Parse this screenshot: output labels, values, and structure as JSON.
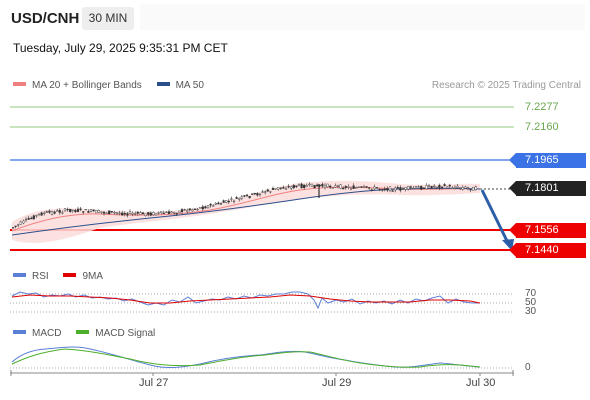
{
  "header": {
    "symbol": "USD/CNH",
    "timeframe": "30 MIN",
    "datetime": "Tuesday, July 29, 2025 9:35:31 PM CET"
  },
  "legend_main": {
    "items": [
      {
        "label": "MA 20 + Bollinger Bands",
        "color": "#f08080"
      },
      {
        "label": "MA 50",
        "color": "#2b4f8c"
      }
    ],
    "credit": "Research © 2025 Trading Central"
  },
  "levels": {
    "resistance_2": "7.2277",
    "resistance_1": "7.2160",
    "pivot": "7.1965",
    "current": "7.1801",
    "support_1": "7.1556",
    "support_2": "7.1440"
  },
  "legend_rsi": {
    "items": [
      {
        "label": "RSI",
        "color": "#5b7fd6"
      },
      {
        "label": "9MA",
        "color": "#e00000"
      }
    ],
    "levels": [
      "70",
      "50",
      "30"
    ]
  },
  "legend_macd": {
    "items": [
      {
        "label": "MACD",
        "color": "#5b7fd6"
      },
      {
        "label": "MACD Signal",
        "color": "#4caf2a"
      }
    ],
    "zero": "0"
  },
  "x_axis": {
    "labels": [
      "Jul 27",
      "Jul 29",
      "Jul 30"
    ]
  },
  "colors": {
    "green_level": "#8fc97a",
    "blue_level": "#3b73e6",
    "red_level": "#ee0000",
    "candle": "#333333",
    "band_fill": "#fbdcdc",
    "arrow": "#2d5fa8"
  }
}
